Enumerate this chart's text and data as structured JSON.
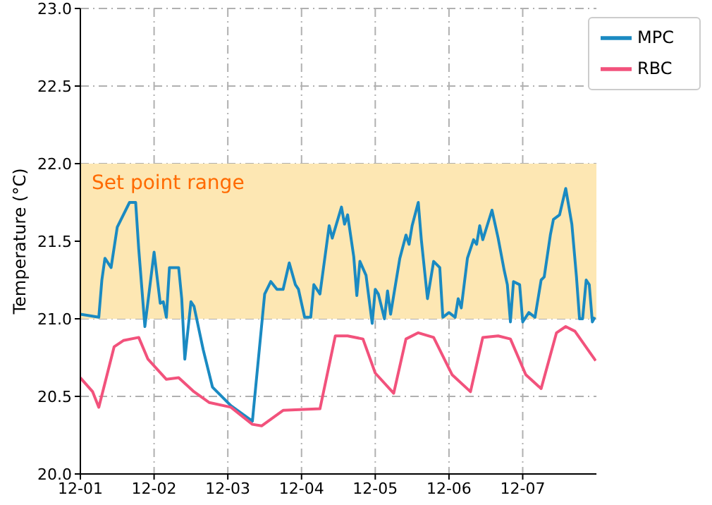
{
  "chart_data": {
    "type": "line",
    "ylabel": "Temperature (°C)",
    "xlim": [
      "--12-01",
      "--12-08"
    ],
    "xticks": [
      {
        "value": "--12-01",
        "label": "12-01"
      },
      {
        "value": "--12-02",
        "label": "12-02"
      },
      {
        "value": "--12-03",
        "label": "12-03"
      },
      {
        "value": "--12-04",
        "label": "12-04"
      },
      {
        "value": "--12-05",
        "label": "12-05"
      },
      {
        "value": "--12-06",
        "label": "12-06"
      },
      {
        "value": "--12-07",
        "label": "12-07"
      }
    ],
    "ylim": [
      20,
      23
    ],
    "yticks": [
      {
        "value": 20,
        "label": "20.0"
      },
      {
        "value": 20.5,
        "label": "20.5"
      },
      {
        "value": 21,
        "label": "21.0"
      },
      {
        "value": 21.5,
        "label": "21.5"
      },
      {
        "value": 22,
        "label": "22.0"
      },
      {
        "value": 22.5,
        "label": "22.5"
      },
      {
        "value": 23,
        "label": "23.0"
      }
    ],
    "grid": true,
    "legend": "top right",
    "marker": "none",
    "line_style": "solid",
    "bands": [
      {
        "axis": "y",
        "from": 21,
        "to": 22,
        "label": "Set point range",
        "color": "#fde7b3"
      }
    ],
    "series": [
      {
        "name": "MPC",
        "color": "#1a8ac2",
        "x": [
          "--12-01T00:00",
          "--12-01T06:00",
          "--12-01T07:00",
          "--12-01T08:00",
          "--12-01T10:00",
          "--12-01T12:00",
          "--12-01T16:00",
          "--12-01T18:00",
          "--12-01T19:00",
          "--12-01T21:00",
          "--12-02T00:00",
          "--12-02T02:00",
          "--12-02T03:00",
          "--12-02T04:00",
          "--12-02T05:00",
          "--12-02T08:00",
          "--12-02T09:00",
          "--12-02T10:00",
          "--12-02T12:00",
          "--12-02T13:00",
          "--12-02T16:00",
          "--12-02T19:00",
          "--12-03T01:00",
          "--12-03T08:00",
          "--12-03T12:00",
          "--12-03T14:00",
          "--12-03T16:00",
          "--12-03T18:00",
          "--12-03T20:00",
          "--12-03T22:00",
          "--12-03T23:00",
          "--12-04T01:00",
          "--12-04T03:00",
          "--12-04T04:00",
          "--12-04T06:00",
          "--12-04T09:00",
          "--12-04T10:00",
          "--12-04T13:00",
          "--12-04T14:00",
          "--12-04T15:00",
          "--12-04T17:00",
          "--12-04T18:00",
          "--12-04T19:00",
          "--12-04T21:00",
          "--12-04T23:00",
          "--12-05T00:00",
          "--12-05T01:00",
          "--12-05T03:00",
          "--12-05T04:00",
          "--12-05T05:00",
          "--12-05T08:00",
          "--12-05T10:00",
          "--12-05T11:00",
          "--12-05T12:00",
          "--12-05T14:00",
          "--12-05T15:00",
          "--12-05T17:00",
          "--12-05T19:00",
          "--12-05T21:00",
          "--12-05T22:00",
          "--12-06T00:00",
          "--12-06T02:00",
          "--12-06T03:00",
          "--12-06T04:00",
          "--12-06T06:00",
          "--12-06T08:00",
          "--12-06T09:00",
          "--12-06T10:00",
          "--12-06T11:00",
          "--12-06T14:00",
          "--12-06T16:00",
          "--12-06T18:00",
          "--12-06T19:00",
          "--12-06T20:00",
          "--12-06T21:00",
          "--12-06T23:00",
          "--12-07T00:00",
          "--12-07T02:00",
          "--12-07T04:00",
          "--12-07T06:00",
          "--12-07T07:00",
          "--12-07T09:00",
          "--12-07T10:00",
          "--12-07T12:00",
          "--12-07T14:00",
          "--12-07T16:00",
          "--12-07T17:30",
          "--12-07T18:30",
          "--12-07T19:30",
          "--12-07T20:40",
          "--12-07T21:40",
          "--12-07T22:40",
          "--12-07T23:30"
        ],
        "values": [
          21.03,
          21.01,
          21.25,
          21.39,
          21.33,
          21.59,
          21.75,
          21.75,
          21.45,
          20.95,
          21.43,
          21.1,
          21.11,
          21.01,
          21.33,
          21.33,
          21.13,
          20.74,
          21.11,
          21.08,
          20.8,
          20.56,
          20.44,
          20.34,
          21.16,
          21.24,
          21.19,
          21.19,
          21.36,
          21.22,
          21.19,
          21.01,
          21.01,
          21.22,
          21.16,
          21.6,
          21.52,
          21.72,
          21.61,
          21.67,
          21.4,
          21.15,
          21.37,
          21.28,
          20.97,
          21.19,
          21.16,
          21.0,
          21.18,
          21.03,
          21.39,
          21.54,
          21.48,
          21.6,
          21.75,
          21.51,
          21.13,
          21.37,
          21.33,
          21.01,
          21.04,
          21.01,
          21.13,
          21.07,
          21.39,
          21.51,
          21.48,
          21.6,
          21.51,
          21.7,
          21.52,
          21.31,
          21.22,
          20.98,
          21.24,
          21.22,
          20.98,
          21.04,
          21.01,
          21.25,
          21.27,
          21.54,
          21.64,
          21.67,
          21.84,
          21.61,
          21.27,
          21.0,
          21.0,
          21.25,
          21.22,
          20.98,
          21.01
        ]
      },
      {
        "name": "RBC",
        "color": "#f2527c",
        "x": [
          "--12-01T00:00",
          "--12-01T04:00",
          "--12-01T06:00",
          "--12-01T11:00",
          "--12-01T14:00",
          "--12-01T19:00",
          "--12-01T22:00",
          "--12-02T04:00",
          "--12-02T08:00",
          "--12-02T13:00",
          "--12-02T18:00",
          "--12-03T01:00",
          "--12-03T08:00",
          "--12-03T11:00",
          "--12-03T18:00",
          "--12-04T06:00",
          "--12-04T11:00",
          "--12-04T15:00",
          "--12-04T20:00",
          "--12-05T00:00",
          "--12-05T06:00",
          "--12-05T10:00",
          "--12-05T14:00",
          "--12-05T19:00",
          "--12-06T01:00",
          "--12-06T07:00",
          "--12-06T11:00",
          "--12-06T16:00",
          "--12-06T20:00",
          "--12-07T01:00",
          "--12-07T06:00",
          "--12-07T11:00",
          "--12-07T14:00",
          "--12-07T17:00",
          "--12-07T23:45"
        ],
        "values": [
          20.62,
          20.53,
          20.43,
          20.82,
          20.86,
          20.88,
          20.74,
          20.61,
          20.62,
          20.53,
          20.46,
          20.43,
          20.32,
          20.31,
          20.41,
          20.42,
          20.89,
          20.89,
          20.87,
          20.65,
          20.52,
          20.87,
          20.91,
          20.88,
          20.64,
          20.53,
          20.88,
          20.89,
          20.87,
          20.64,
          20.55,
          20.91,
          20.95,
          20.92,
          20.73
        ]
      }
    ]
  }
}
